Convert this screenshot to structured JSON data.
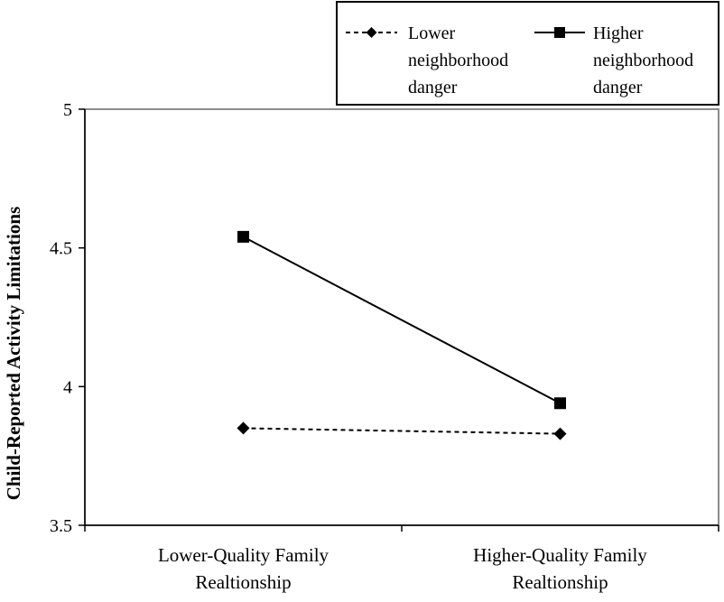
{
  "chart_data": {
    "type": "line",
    "title": "",
    "xlabel": "",
    "ylabel": "Child-Reported Activity Limitations",
    "categories": [
      [
        "Lower-Quality Family",
        "Realtionship"
      ],
      [
        "Higher-Quality Family",
        "Realtionship"
      ]
    ],
    "series": [
      {
        "name": "Lower neighborhood danger",
        "name_lines": [
          "Lower",
          "neighborhood",
          "danger"
        ],
        "values": [
          3.85,
          3.83
        ],
        "marker": "diamond",
        "dash": "dashed",
        "color": "#000000"
      },
      {
        "name": "Higher neighborhood danger",
        "name_lines": [
          "Higher",
          "neighborhood",
          "danger"
        ],
        "values": [
          4.54,
          3.94
        ],
        "marker": "square",
        "dash": "solid",
        "color": "#000000"
      }
    ],
    "ylim": [
      3.5,
      5
    ],
    "yticks": [
      "3.5",
      "4",
      "4.5",
      "5"
    ],
    "grid": false,
    "legend_position": "top-right"
  }
}
